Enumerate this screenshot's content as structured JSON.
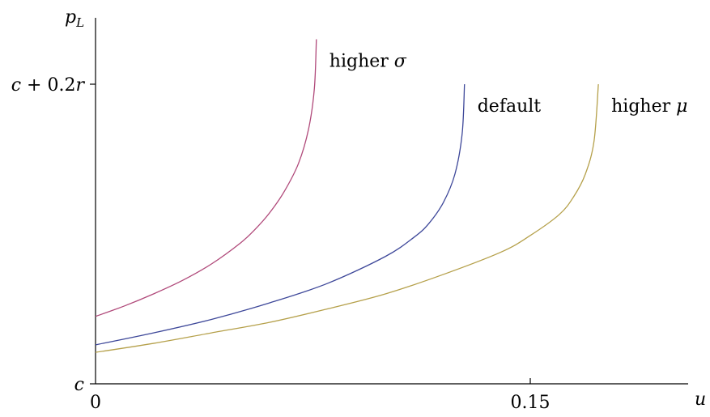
{
  "chart_data": {
    "type": "line",
    "ylabel": "p_L",
    "xlabel": "u",
    "xlim": [
      0,
      0.205
    ],
    "ylim": [
      0,
      0.232
    ],
    "x_ticks": [
      {
        "value": 0,
        "label": "0"
      },
      {
        "value": 0.15,
        "label": "0.15"
      }
    ],
    "y_ticks": [
      {
        "value": 0,
        "label": "c"
      },
      {
        "value": 0.2,
        "label": "c + 0.2r"
      }
    ],
    "grid": false,
    "legend": "inline labels at curve ends",
    "series": [
      {
        "name": "higher σ",
        "color": "#b0497a",
        "points": [
          [
            0,
            0.045
          ],
          [
            0.01,
            0.052
          ],
          [
            0.02,
            0.06
          ],
          [
            0.03,
            0.069
          ],
          [
            0.04,
            0.08
          ],
          [
            0.05,
            0.094
          ],
          [
            0.055,
            0.103
          ],
          [
            0.06,
            0.114
          ],
          [
            0.065,
            0.128
          ],
          [
            0.07,
            0.147
          ],
          [
            0.0735,
            0.17
          ],
          [
            0.0755,
            0.197
          ],
          [
            0.0762,
            0.23
          ]
        ]
      },
      {
        "name": "default",
        "color": "#3d4799",
        "points": [
          [
            0,
            0.026
          ],
          [
            0.02,
            0.034
          ],
          [
            0.04,
            0.043
          ],
          [
            0.06,
            0.054
          ],
          [
            0.08,
            0.067
          ],
          [
            0.1,
            0.085
          ],
          [
            0.11,
            0.098
          ],
          [
            0.115,
            0.107
          ],
          [
            0.12,
            0.121
          ],
          [
            0.124,
            0.14
          ],
          [
            0.1265,
            0.167
          ],
          [
            0.1273,
            0.2
          ]
        ]
      },
      {
        "name": "higher μ",
        "color": "#b5a04a",
        "points": [
          [
            0,
            0.021
          ],
          [
            0.02,
            0.027
          ],
          [
            0.04,
            0.034
          ],
          [
            0.06,
            0.041
          ],
          [
            0.08,
            0.05
          ],
          [
            0.1,
            0.06
          ],
          [
            0.12,
            0.073
          ],
          [
            0.14,
            0.088
          ],
          [
            0.15,
            0.099
          ],
          [
            0.16,
            0.113
          ],
          [
            0.165,
            0.125
          ],
          [
            0.169,
            0.14
          ],
          [
            0.172,
            0.162
          ],
          [
            0.1735,
            0.2
          ]
        ]
      }
    ]
  }
}
